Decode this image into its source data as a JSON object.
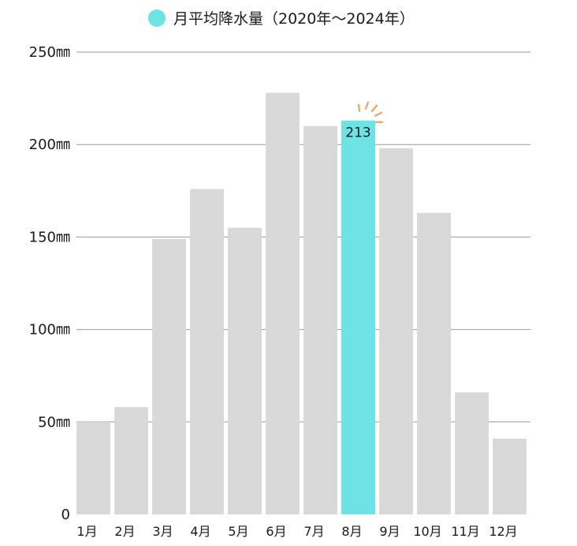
{
  "chart_data": {
    "type": "bar",
    "title": "",
    "legend": {
      "label": "月平均降水量（2020年～2024年）",
      "placement": "top-center",
      "color": "#6ee3e6"
    },
    "categories": [
      "1月",
      "2月",
      "3月",
      "4月",
      "5月",
      "6月",
      "7月",
      "8月",
      "9月",
      "10月",
      "11月",
      "12月"
    ],
    "values": [
      50,
      58,
      149,
      176,
      155,
      228,
      210,
      213,
      198,
      163,
      66,
      41
    ],
    "y_ticks": [
      {
        "value": 0,
        "label": "0"
      },
      {
        "value": 50,
        "label": "50㎜"
      },
      {
        "value": 100,
        "label": "100㎜"
      },
      {
        "value": 150,
        "label": "150㎜"
      },
      {
        "value": 200,
        "label": "200㎜"
      },
      {
        "value": 250,
        "label": "250㎜"
      }
    ],
    "ylim": [
      0,
      250
    ],
    "grid": true,
    "highlight": {
      "index": 7,
      "label": "213"
    },
    "colors": {
      "bar": "#d9d9d9",
      "highlight": "#6ee3e6",
      "grid": "#9a9a9a",
      "sparkle": "#f2a35e"
    }
  }
}
